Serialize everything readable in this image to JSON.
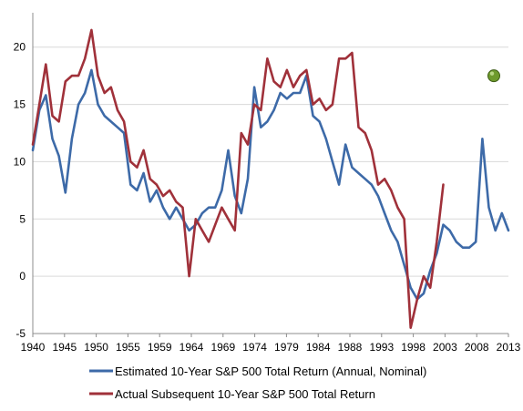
{
  "chart_data": {
    "type": "line",
    "x_axis": {
      "tick_labels": [
        "1940",
        "1945",
        "1950",
        "1955",
        "1959",
        "1964",
        "1969",
        "1974",
        "1979",
        "1984",
        "1988",
        "1993",
        "1998",
        "2003",
        "2008",
        "2013"
      ],
      "xlim": [
        1940,
        2013
      ]
    },
    "y_axis": {
      "tick_labels": [
        "-5",
        "0",
        "5",
        "10",
        "15",
        "20"
      ],
      "ticks": [
        -5,
        0,
        5,
        10,
        15,
        20
      ],
      "ylim": [
        -5,
        23
      ]
    },
    "grid": "horizontal",
    "legend": "bottom",
    "series": [
      {
        "name": "Estimated 10-Year S&P 500 Total Return (Annual, Nominal)",
        "color": "#3d6aa8",
        "x": [
          1940,
          1941,
          1942,
          1943,
          1944,
          1945,
          1946,
          1947,
          1948,
          1949,
          1950,
          1951,
          1952,
          1953,
          1954,
          1955,
          1956,
          1957,
          1958,
          1959,
          1960,
          1961,
          1962,
          1963,
          1964,
          1965,
          1966,
          1967,
          1968,
          1969,
          1970,
          1971,
          1972,
          1973,
          1974,
          1975,
          1976,
          1977,
          1978,
          1979,
          1980,
          1981,
          1982,
          1983,
          1984,
          1985,
          1986,
          1987,
          1988,
          1989,
          1990,
          1991,
          1992,
          1993,
          1994,
          1995,
          1996,
          1997,
          1998,
          1999,
          2000,
          2001,
          2002,
          2003,
          2004,
          2005,
          2006,
          2007,
          2008,
          2009,
          2010,
          2011,
          2012,
          2013
        ],
        "y": [
          11,
          14.5,
          15.8,
          12,
          10.5,
          7.3,
          12,
          15,
          16,
          18,
          15,
          14,
          13.5,
          13,
          12.5,
          8,
          7.5,
          9,
          6.5,
          7.5,
          6,
          5,
          6,
          5,
          4,
          4.5,
          5.5,
          6,
          6,
          7.5,
          11,
          7,
          5.5,
          8.5,
          16.5,
          13,
          13.5,
          14.5,
          16,
          15.5,
          16,
          16,
          17.5,
          14,
          13.5,
          12,
          10,
          8,
          11.5,
          9.5,
          9,
          8.5,
          8,
          7,
          5.5,
          4,
          3,
          1,
          -1,
          -2,
          -1.5,
          0.5,
          2,
          4.5,
          4,
          3,
          2.5,
          2.5,
          3,
          12,
          6,
          4,
          5.5,
          4
        ]
      },
      {
        "name": "Actual Subsequent 10-Year S&P 500 Total Return",
        "color": "#a0313a",
        "x": [
          1940,
          1941,
          1942,
          1943,
          1944,
          1945,
          1946,
          1947,
          1948,
          1949,
          1950,
          1951,
          1952,
          1953,
          1954,
          1955,
          1956,
          1957,
          1958,
          1959,
          1960,
          1961,
          1962,
          1963,
          1964,
          1965,
          1966,
          1967,
          1968,
          1969,
          1970,
          1971,
          1972,
          1973,
          1974,
          1975,
          1976,
          1977,
          1978,
          1979,
          1980,
          1981,
          1982,
          1983,
          1984,
          1985,
          1986,
          1987,
          1988,
          1989,
          1990,
          1991,
          1992,
          1993,
          1994,
          1995,
          1996,
          1997,
          1998,
          1999,
          2000,
          2001,
          2002,
          2003
        ],
        "y": [
          11.5,
          15,
          18.5,
          14,
          13.5,
          17,
          17.5,
          17.5,
          19,
          21.5,
          17.5,
          16,
          16.5,
          14.5,
          13.5,
          10,
          9.5,
          11,
          8.5,
          8,
          7,
          7.5,
          6.5,
          6,
          0,
          5,
          4,
          3,
          4.5,
          6,
          5,
          4,
          12.5,
          11.5,
          15,
          14.5,
          19,
          17,
          16.5,
          18,
          16.5,
          17.5,
          18,
          15,
          15.5,
          14.5,
          15,
          19,
          19,
          19.5,
          13,
          12.5,
          11,
          8,
          8.5,
          7.5,
          6,
          5,
          -4.5,
          -2,
          0,
          -1,
          3,
          8
        ]
      }
    ],
    "highlight_point": {
      "x": 2013,
      "y": 17.5,
      "color": "#6e9a2c"
    }
  }
}
